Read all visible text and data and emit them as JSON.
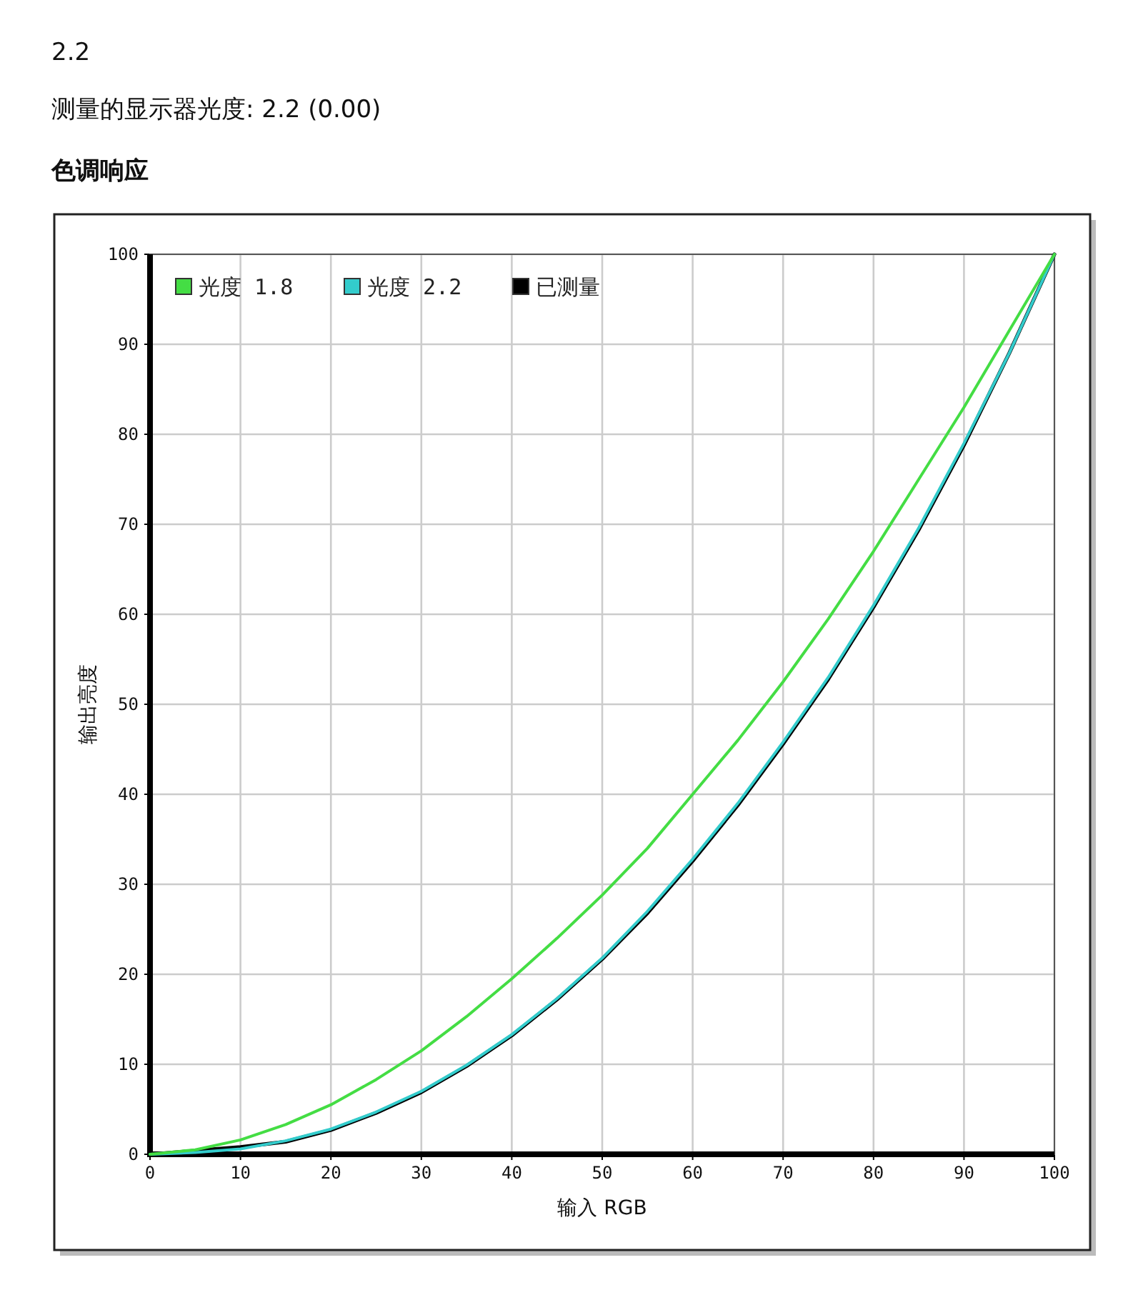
{
  "chart_data": {
    "type": "line",
    "title": "2.2",
    "subtitle": "测量的显示器光度: 2.2 (0.00)",
    "annotations": [
      "色调响应"
    ],
    "xlabel": "输入 RGB",
    "ylabel": "输出亮度",
    "x": [
      0,
      5,
      10,
      15,
      20,
      25,
      30,
      35,
      40,
      45,
      50,
      55,
      60,
      65,
      70,
      75,
      80,
      85,
      90,
      95,
      100
    ],
    "series": [
      {
        "name": "光度 1.8",
        "color": "#44dd44",
        "values": [
          0,
          0.5,
          1.6,
          3.3,
          5.5,
          8.3,
          11.5,
          15.3,
          19.5,
          24,
          28.8,
          34,
          40,
          46,
          52.5,
          59.5,
          67,
          75,
          83,
          91.5,
          100
        ]
      },
      {
        "name": "光度 2.2",
        "color": "#33cccc",
        "values": [
          0,
          0.2,
          0.6,
          1.5,
          2.8,
          4.7,
          7,
          9.9,
          13.3,
          17.3,
          21.8,
          27,
          32.8,
          39,
          45.8,
          53,
          61,
          69.6,
          79,
          89,
          100
        ]
      },
      {
        "name": "已测量",
        "color": "#000000",
        "values": [
          0,
          0.4,
          0.8,
          1.4,
          2.7,
          4.6,
          6.9,
          9.8,
          13.2,
          17.2,
          21.7,
          26.8,
          32.6,
          38.8,
          45.6,
          52.8,
          60.8,
          69.4,
          78.8,
          89,
          100
        ]
      }
    ],
    "xlim": [
      0,
      100
    ],
    "ylim": [
      0,
      100
    ],
    "xticks": [
      0,
      10,
      20,
      30,
      40,
      50,
      60,
      70,
      80,
      90,
      100
    ],
    "yticks": [
      0,
      10,
      20,
      30,
      40,
      50,
      60,
      70,
      80,
      90,
      100
    ],
    "grid": true,
    "legend": "top left"
  }
}
